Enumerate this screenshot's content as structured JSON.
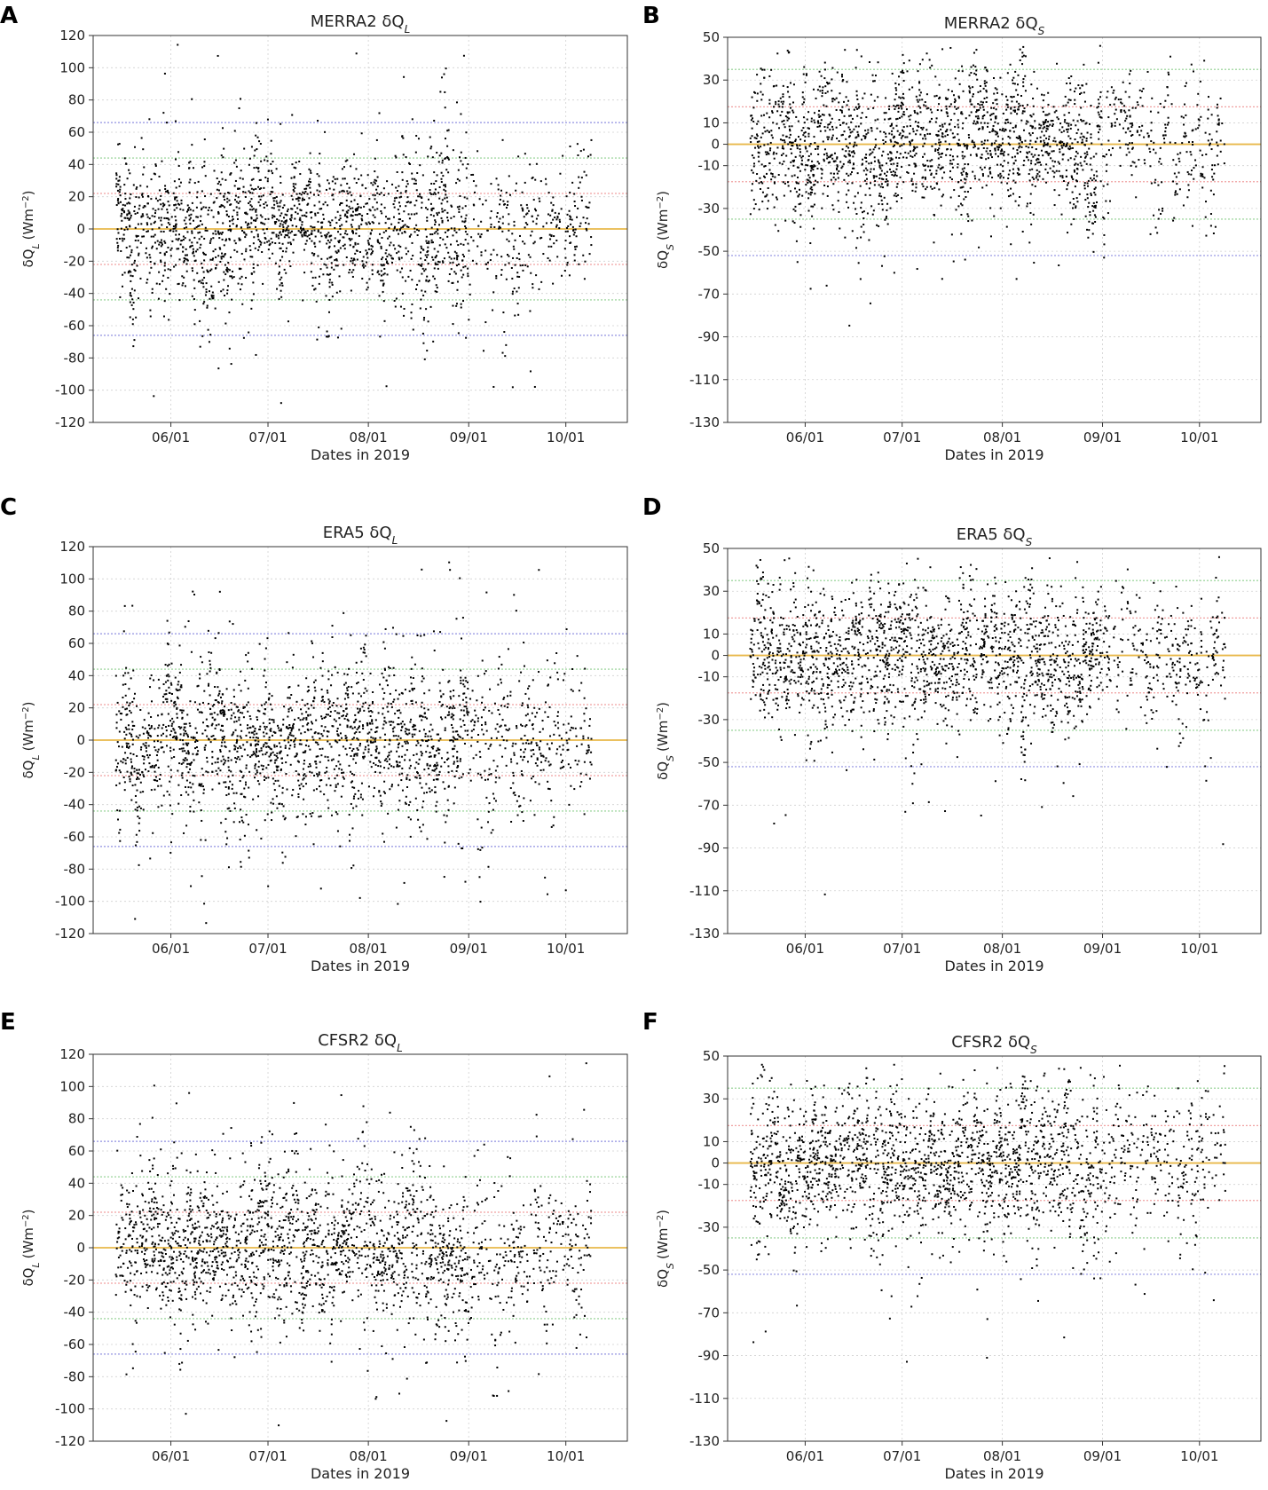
{
  "chart_data": [
    {
      "id": "A",
      "type": "scatter",
      "title": "MERRA2 δQ",
      "title_sub": "L",
      "xlabel": "Dates in 2019",
      "ylabel_main": "δQ",
      "ylabel_sub": "L",
      "ylabel_unit": "(Wm",
      "ylim": [
        -120,
        120
      ],
      "yticks": [
        "-120",
        "-100",
        "-80",
        "-60",
        "-40",
        "-20",
        "0",
        "20",
        "40",
        "60",
        "80",
        "100",
        "120"
      ],
      "xlim": [
        "05/08",
        "10/20"
      ],
      "xticks": [
        "06/01",
        "07/01",
        "08/01",
        "09/01",
        "10/01"
      ],
      "hlines": [
        {
          "y": 0,
          "color": "#e8b84a"
        },
        {
          "y": 22,
          "color": "#f0a0a0"
        },
        {
          "y": -22,
          "color": "#f0a0a0"
        },
        {
          "y": 44,
          "color": "#8fcf8f"
        },
        {
          "y": -44,
          "color": "#8fcf8f"
        },
        {
          "y": 66,
          "color": "#9090e0"
        },
        {
          "y": -66,
          "color": "#9090e0"
        }
      ],
      "grid": true,
      "points": []
    },
    {
      "id": "B",
      "type": "scatter",
      "title": "MERRA2 δQ",
      "title_sub": "S",
      "xlabel": "Dates in 2019",
      "ylabel_main": "δQ",
      "ylabel_sub": "S",
      "ylabel_unit": "(Wm",
      "ylim": [
        -130,
        50
      ],
      "yticks": [
        "-130",
        "-110",
        "-90",
        "-70",
        "-50",
        "-30",
        "-10",
        "0",
        "10",
        "30",
        "50"
      ],
      "xlim": [
        "05/08",
        "10/20"
      ],
      "xticks": [
        "06/01",
        "07/01",
        "08/01",
        "09/01",
        "10/01"
      ],
      "hlines": [
        {
          "y": 0,
          "color": "#e8b84a"
        },
        {
          "y": 17.5,
          "color": "#f0a0a0"
        },
        {
          "y": -17.5,
          "color": "#f0a0a0"
        },
        {
          "y": 35,
          "color": "#8fcf8f"
        },
        {
          "y": -35,
          "color": "#8fcf8f"
        },
        {
          "y": -52,
          "color": "#9090e0"
        }
      ],
      "grid": true,
      "points": []
    },
    {
      "id": "C",
      "type": "scatter",
      "title": "ERA5 δQ",
      "title_sub": "L",
      "xlabel": "Dates in 2019",
      "ylabel_main": "δQ",
      "ylabel_sub": "L",
      "ylabel_unit": "(Wm",
      "ylim": [
        -120,
        120
      ],
      "yticks": [
        "-120",
        "-100",
        "-80",
        "-60",
        "-40",
        "-20",
        "0",
        "20",
        "40",
        "60",
        "80",
        "100",
        "120"
      ],
      "xlim": [
        "05/08",
        "10/20"
      ],
      "xticks": [
        "06/01",
        "07/01",
        "08/01",
        "09/01",
        "10/01"
      ],
      "hlines": [
        {
          "y": 0,
          "color": "#e8b84a"
        },
        {
          "y": 22,
          "color": "#f0a0a0"
        },
        {
          "y": -22,
          "color": "#f0a0a0"
        },
        {
          "y": 44,
          "color": "#8fcf8f"
        },
        {
          "y": -44,
          "color": "#8fcf8f"
        },
        {
          "y": 66,
          "color": "#9090e0"
        },
        {
          "y": -66,
          "color": "#9090e0"
        }
      ],
      "grid": true,
      "points": []
    },
    {
      "id": "D",
      "type": "scatter",
      "title": "ERA5 δQ",
      "title_sub": "S",
      "xlabel": "Dates in 2019",
      "ylabel_main": "δQ",
      "ylabel_sub": "S",
      "ylabel_unit": "(Wm",
      "ylim": [
        -130,
        50
      ],
      "yticks": [
        "-130",
        "-110",
        "-90",
        "-70",
        "-50",
        "-30",
        "-10",
        "0",
        "10",
        "30",
        "50"
      ],
      "xlim": [
        "05/08",
        "10/20"
      ],
      "xticks": [
        "06/01",
        "07/01",
        "08/01",
        "09/01",
        "10/01"
      ],
      "hlines": [
        {
          "y": 0,
          "color": "#e8b84a"
        },
        {
          "y": 17.5,
          "color": "#f0a0a0"
        },
        {
          "y": -17.5,
          "color": "#f0a0a0"
        },
        {
          "y": 35,
          "color": "#8fcf8f"
        },
        {
          "y": -35,
          "color": "#8fcf8f"
        },
        {
          "y": -52,
          "color": "#9090e0"
        }
      ],
      "grid": true,
      "points": []
    },
    {
      "id": "E",
      "type": "scatter",
      "title": "CFSR2 δQ",
      "title_sub": "L",
      "xlabel": "Dates in 2019",
      "ylabel_main": "δQ",
      "ylabel_sub": "L",
      "ylabel_unit": "(Wm",
      "ylim": [
        -120,
        120
      ],
      "yticks": [
        "-120",
        "-100",
        "-80",
        "-60",
        "-40",
        "-20",
        "0",
        "20",
        "40",
        "60",
        "80",
        "100",
        "120"
      ],
      "xlim": [
        "05/08",
        "10/20"
      ],
      "xticks": [
        "06/01",
        "07/01",
        "08/01",
        "09/01",
        "10/01"
      ],
      "hlines": [
        {
          "y": 0,
          "color": "#e8b84a"
        },
        {
          "y": 22,
          "color": "#f0a0a0"
        },
        {
          "y": -22,
          "color": "#f0a0a0"
        },
        {
          "y": 44,
          "color": "#8fcf8f"
        },
        {
          "y": -44,
          "color": "#8fcf8f"
        },
        {
          "y": 66,
          "color": "#9090e0"
        },
        {
          "y": -66,
          "color": "#9090e0"
        }
      ],
      "grid": true,
      "points": []
    },
    {
      "id": "F",
      "type": "scatter",
      "title": "CFSR2 δQ",
      "title_sub": "S",
      "xlabel": "Dates in 2019",
      "ylabel_main": "δQ",
      "ylabel_sub": "S",
      "ylabel_unit": "(Wm",
      "ylim": [
        -130,
        50
      ],
      "yticks": [
        "-130",
        "-110",
        "-90",
        "-70",
        "-50",
        "-30",
        "-10",
        "0",
        "10",
        "30",
        "50"
      ],
      "xlim": [
        "05/08",
        "10/20"
      ],
      "xticks": [
        "06/01",
        "07/01",
        "08/01",
        "09/01",
        "10/01"
      ],
      "hlines": [
        {
          "y": 0,
          "color": "#e8b84a"
        },
        {
          "y": 17.5,
          "color": "#f0a0a0"
        },
        {
          "y": -17.5,
          "color": "#f0a0a0"
        },
        {
          "y": 35,
          "color": "#8fcf8f"
        },
        {
          "y": -35,
          "color": "#8fcf8f"
        },
        {
          "y": -52,
          "color": "#9090e0"
        }
      ],
      "grid": true,
      "points": []
    }
  ]
}
